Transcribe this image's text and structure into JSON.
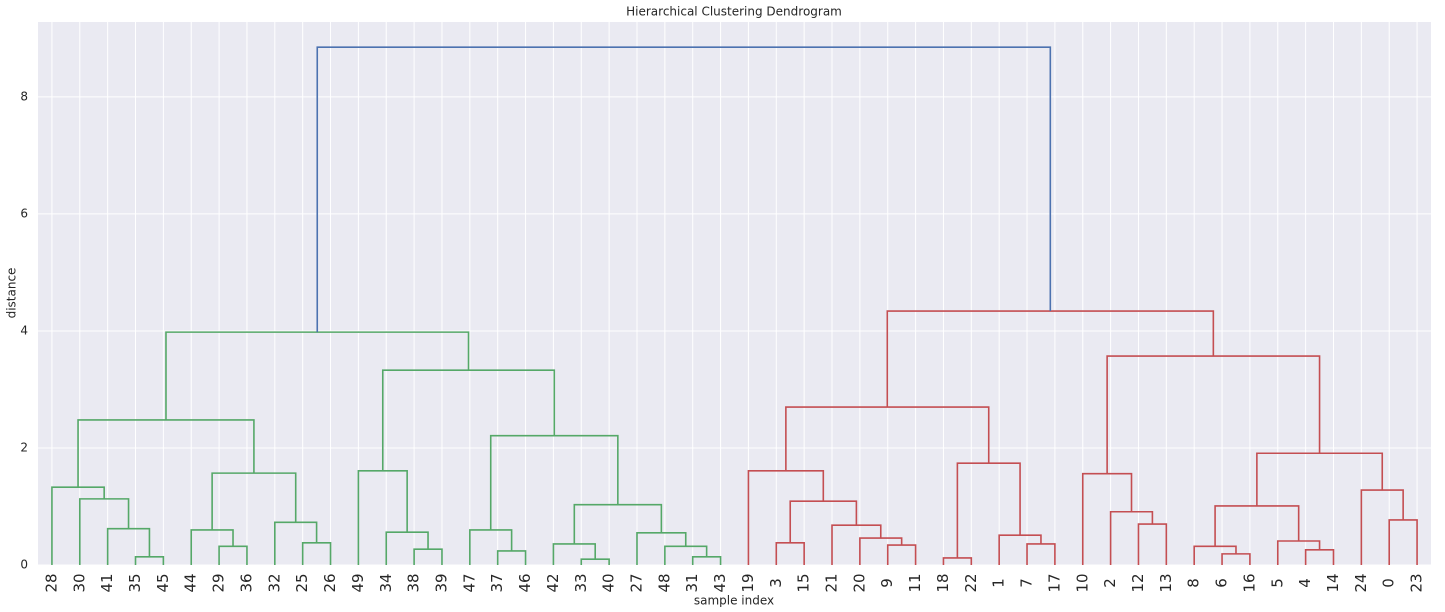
{
  "chart_data": {
    "type": "dendrogram",
    "title": "Hierarchical Clustering Dendrogram",
    "x_label": "sample index",
    "y_label": "distance",
    "categories": [
      "28",
      "30",
      "41",
      "35",
      "45",
      "44",
      "29",
      "36",
      "32",
      "25",
      "26",
      "49",
      "34",
      "38",
      "39",
      "47",
      "37",
      "46",
      "42",
      "33",
      "40",
      "27",
      "48",
      "31",
      "43",
      "19",
      "3",
      "15",
      "21",
      "20",
      "9",
      "11",
      "18",
      "22",
      "1",
      "7",
      "17",
      "10",
      "2",
      "12",
      "13",
      "8",
      "6",
      "16",
      "5",
      "4",
      "14",
      "24",
      "0",
      "23"
    ],
    "links": [
      {
        "children": [
          3,
          4
        ],
        "height": 0.14,
        "color": "#55a868"
      },
      {
        "children": [
          2,
          50
        ],
        "height": 0.62,
        "color": "#55a868"
      },
      {
        "children": [
          1,
          51
        ],
        "height": 1.13,
        "color": "#55a868"
      },
      {
        "children": [
          0,
          52
        ],
        "height": 1.33,
        "color": "#55a868"
      },
      {
        "children": [
          6,
          7
        ],
        "height": 0.32,
        "color": "#55a868"
      },
      {
        "children": [
          5,
          54
        ],
        "height": 0.6,
        "color": "#55a868"
      },
      {
        "children": [
          9,
          10
        ],
        "height": 0.38,
        "color": "#55a868"
      },
      {
        "children": [
          8,
          56
        ],
        "height": 0.73,
        "color": "#55a868"
      },
      {
        "children": [
          55,
          57
        ],
        "height": 1.57,
        "color": "#55a868"
      },
      {
        "children": [
          53,
          58
        ],
        "height": 2.48,
        "color": "#55a868"
      },
      {
        "children": [
          13,
          14
        ],
        "height": 0.27,
        "color": "#55a868"
      },
      {
        "children": [
          12,
          60
        ],
        "height": 0.56,
        "color": "#55a868"
      },
      {
        "children": [
          11,
          61
        ],
        "height": 1.61,
        "color": "#55a868"
      },
      {
        "children": [
          16,
          17
        ],
        "height": 0.24,
        "color": "#55a868"
      },
      {
        "children": [
          15,
          63
        ],
        "height": 0.6,
        "color": "#55a868"
      },
      {
        "children": [
          19,
          20
        ],
        "height": 0.1,
        "color": "#55a868"
      },
      {
        "children": [
          18,
          65
        ],
        "height": 0.36,
        "color": "#55a868"
      },
      {
        "children": [
          23,
          24
        ],
        "height": 0.14,
        "color": "#55a868"
      },
      {
        "children": [
          22,
          67
        ],
        "height": 0.32,
        "color": "#55a868"
      },
      {
        "children": [
          21,
          68
        ],
        "height": 0.55,
        "color": "#55a868"
      },
      {
        "children": [
          66,
          69
        ],
        "height": 1.03,
        "color": "#55a868"
      },
      {
        "children": [
          64,
          70
        ],
        "height": 2.21,
        "color": "#55a868"
      },
      {
        "children": [
          62,
          71
        ],
        "height": 3.33,
        "color": "#55a868"
      },
      {
        "children": [
          59,
          72
        ],
        "height": 3.98,
        "color": "#55a868"
      },
      {
        "children": [
          26,
          27
        ],
        "height": 0.38,
        "color": "#c44e52"
      },
      {
        "children": [
          30,
          31
        ],
        "height": 0.34,
        "color": "#c44e52"
      },
      {
        "children": [
          29,
          75
        ],
        "height": 0.46,
        "color": "#c44e52"
      },
      {
        "children": [
          28,
          76
        ],
        "height": 0.68,
        "color": "#c44e52"
      },
      {
        "children": [
          74,
          77
        ],
        "height": 1.09,
        "color": "#c44e52"
      },
      {
        "children": [
          25,
          78
        ],
        "height": 1.61,
        "color": "#c44e52"
      },
      {
        "children": [
          32,
          33
        ],
        "height": 0.12,
        "color": "#c44e52"
      },
      {
        "children": [
          35,
          36
        ],
        "height": 0.36,
        "color": "#c44e52"
      },
      {
        "children": [
          34,
          81
        ],
        "height": 0.51,
        "color": "#c44e52"
      },
      {
        "children": [
          80,
          82
        ],
        "height": 1.74,
        "color": "#c44e52"
      },
      {
        "children": [
          79,
          83
        ],
        "height": 2.7,
        "color": "#c44e52"
      },
      {
        "children": [
          39,
          40
        ],
        "height": 0.7,
        "color": "#c44e52"
      },
      {
        "children": [
          38,
          85
        ],
        "height": 0.91,
        "color": "#c44e52"
      },
      {
        "children": [
          37,
          86
        ],
        "height": 1.56,
        "color": "#c44e52"
      },
      {
        "children": [
          42,
          43
        ],
        "height": 0.19,
        "color": "#c44e52"
      },
      {
        "children": [
          41,
          88
        ],
        "height": 0.32,
        "color": "#c44e52"
      },
      {
        "children": [
          45,
          46
        ],
        "height": 0.26,
        "color": "#c44e52"
      },
      {
        "children": [
          44,
          90
        ],
        "height": 0.41,
        "color": "#c44e52"
      },
      {
        "children": [
          89,
          91
        ],
        "height": 1.01,
        "color": "#c44e52"
      },
      {
        "children": [
          48,
          49
        ],
        "height": 0.77,
        "color": "#c44e52"
      },
      {
        "children": [
          47,
          93
        ],
        "height": 1.28,
        "color": "#c44e52"
      },
      {
        "children": [
          92,
          94
        ],
        "height": 1.91,
        "color": "#c44e52"
      },
      {
        "children": [
          87,
          95
        ],
        "height": 3.57,
        "color": "#c44e52"
      },
      {
        "children": [
          84,
          96
        ],
        "height": 4.34,
        "color": "#c44e52"
      },
      {
        "children": [
          73,
          97
        ],
        "height": 8.85,
        "color": "#4c72b0"
      }
    ],
    "ylim": [
      0,
      9.28
    ],
    "yticks": [
      0,
      2,
      4,
      6,
      8
    ],
    "grid": true
  }
}
